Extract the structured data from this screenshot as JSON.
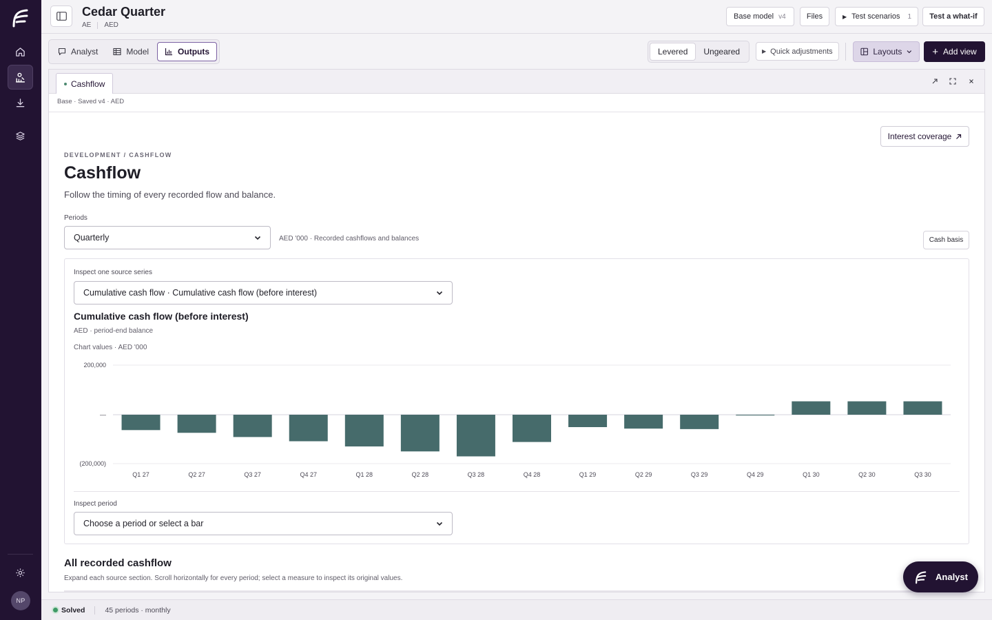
{
  "rail": {
    "avatar_initials": "NP",
    "items": [
      {
        "name": "home-icon"
      },
      {
        "name": "analysis-icon"
      },
      {
        "name": "download-icon"
      },
      {
        "name": "layers-icon"
      }
    ],
    "active_index": 1
  },
  "header": {
    "title": "Cedar Quarter",
    "country": "AE",
    "currency": "AED",
    "base_model_label": "Base model",
    "base_model_version": "v4",
    "files_label": "Files",
    "test_scenarios_label": "Test scenarios",
    "test_scenarios_count": "1",
    "whatif_label": "Test a what-if"
  },
  "toolbar": {
    "tabs": [
      "Analyst",
      "Model",
      "Outputs"
    ],
    "active_tab": "Outputs",
    "levered_label": "Levered",
    "ungeared_label": "Ungeared",
    "quick_label": "Quick adjustments",
    "layouts_label": "Layouts",
    "add_view_label": "Add view"
  },
  "panel": {
    "tab_label": "Cashflow",
    "breadcrumb": "Base · Saved v4 · AED",
    "interest_label": "Interest coverage",
    "eyebrow": "DEVELOPMENT / CASHFLOW",
    "heading": "Cashflow",
    "lead": "Follow the timing of every recorded flow and balance.",
    "periods_label": "Periods",
    "periods_value": "Quarterly",
    "units_text": "AED '000 · Recorded cashflows and balances",
    "cash_basis_label": "Cash basis",
    "inspect_series_label": "Inspect one source series",
    "inspect_series_value": "Cumulative cash flow · Cumulative cash flow (before interest)",
    "chart_title": "Cumulative cash flow (before interest)",
    "chart_sub": "AED · period-end balance",
    "chart_values_label": "Chart values · AED '000",
    "inspect_period_label": "Inspect period",
    "inspect_period_placeholder": "Choose a period or select a bar",
    "all_recorded_title": "All recorded cashflow",
    "all_recorded_sub": "Expand each source section. Scroll horizontally for every period; select a measure to inspect its original values."
  },
  "chart_data": {
    "type": "bar",
    "title": "Cumulative cash flow (before interest)",
    "xlabel": "",
    "ylabel": "",
    "categories": [
      "Q1 27",
      "Q2 27",
      "Q3 27",
      "Q4 27",
      "Q1 28",
      "Q2 28",
      "Q3 28",
      "Q4 28",
      "Q1 29",
      "Q2 29",
      "Q3 29",
      "Q4 29",
      "Q1 30",
      "Q2 30",
      "Q3 30"
    ],
    "values": [
      -62000,
      -73000,
      -90000,
      -107000,
      -128000,
      -148000,
      -168000,
      -110000,
      -50000,
      -56000,
      -58000,
      -3000,
      54000,
      54000,
      54000
    ],
    "ylim": [
      -200000,
      200000
    ],
    "y_tick_labels": [
      "200,000",
      "—",
      "(200,000)"
    ],
    "grid": true,
    "bar_color": "#466b6b"
  },
  "fab": {
    "label": "Analyst"
  },
  "status": {
    "solved_label": "Solved",
    "periods_text": "45 periods · monthly"
  }
}
